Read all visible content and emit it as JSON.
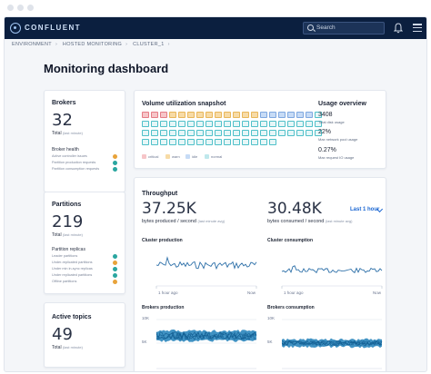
{
  "app": {
    "brand": "CONFLUENT",
    "search_placeholder": "Search"
  },
  "breadcrumb": [
    "ENVIRONMENT",
    "HOSTED MONITORING",
    "CLUSTER_1"
  ],
  "page_title": "Monitoring dashboard",
  "brokers": {
    "title": "Brokers",
    "count": "32",
    "total_label": "Total",
    "total_sub": "(last minute)",
    "health_title": "Broker health",
    "health_rows": [
      {
        "label": "Active controller issues",
        "color": "#e8a33a"
      },
      {
        "label": "Partition production requests",
        "color": "#2aa6a0"
      },
      {
        "label": "Partition consumption requests",
        "color": "#2aa6a0"
      }
    ]
  },
  "partitions": {
    "title": "Partitions",
    "count": "219",
    "total_label": "Total",
    "total_sub": "(last minute)",
    "replicas_title": "Partition replicas",
    "replica_rows": [
      {
        "label": "Leader partitions",
        "color": "#2aa6a0"
      },
      {
        "label": "Under-replicated partitions",
        "color": "#e8a33a"
      },
      {
        "label": "Under min in-sync replicas",
        "color": "#2aa6a0"
      },
      {
        "label": "Under replicated partitions",
        "color": "#2aa6a0"
      },
      {
        "label": "Offline partitions",
        "color": "#e8a33a"
      }
    ]
  },
  "active_topics": {
    "title": "Active topics",
    "count": "49",
    "total_label": "Total",
    "total_sub": "(last minute)"
  },
  "volume": {
    "title": "Volume utilization snapshot",
    "legend": [
      {
        "label": "critical",
        "color": "#f6c5c8"
      },
      {
        "label": "warn",
        "color": "#f7dba6"
      },
      {
        "label": "idle",
        "color": "#c6dbf6"
      },
      {
        "label": "normal",
        "color": "#bfe8ec"
      }
    ]
  },
  "usage": {
    "title": "Usage overview",
    "items": [
      {
        "value": "3408",
        "label": "Total disk usage"
      },
      {
        "value": "22%",
        "label": "Max network pool usage"
      },
      {
        "value": "0.27%",
        "label": "Max request IO usage"
      }
    ]
  },
  "throughput": {
    "title": "Throughput",
    "range": "Last 1 hour",
    "produced": {
      "value": "37.25K",
      "label": "bytes produced / second",
      "sub": "(last minute avg)"
    },
    "consumed": {
      "value": "30.48K",
      "label": "bytes consumed / second",
      "sub": "(last minute avg)"
    },
    "charts": [
      {
        "title": "Cluster production",
        "x_start": "1 hour ago",
        "x_end": "Now",
        "y_labels": []
      },
      {
        "title": "Cluster consumption",
        "x_start": "1 hour ago",
        "x_end": "Now",
        "y_labels": []
      },
      {
        "title": "Brokers production",
        "x_start": "",
        "x_end": "",
        "y_labels": [
          "10K",
          "5K"
        ]
      },
      {
        "title": "Brokers consumption",
        "x_start": "",
        "x_end": "",
        "y_labels": [
          "10K",
          "5K"
        ]
      }
    ]
  },
  "colors": {
    "nav": "#0b1f3f",
    "accent": "#1a66d2",
    "line": "#2c6fa8",
    "band": "#1f7fb8"
  }
}
